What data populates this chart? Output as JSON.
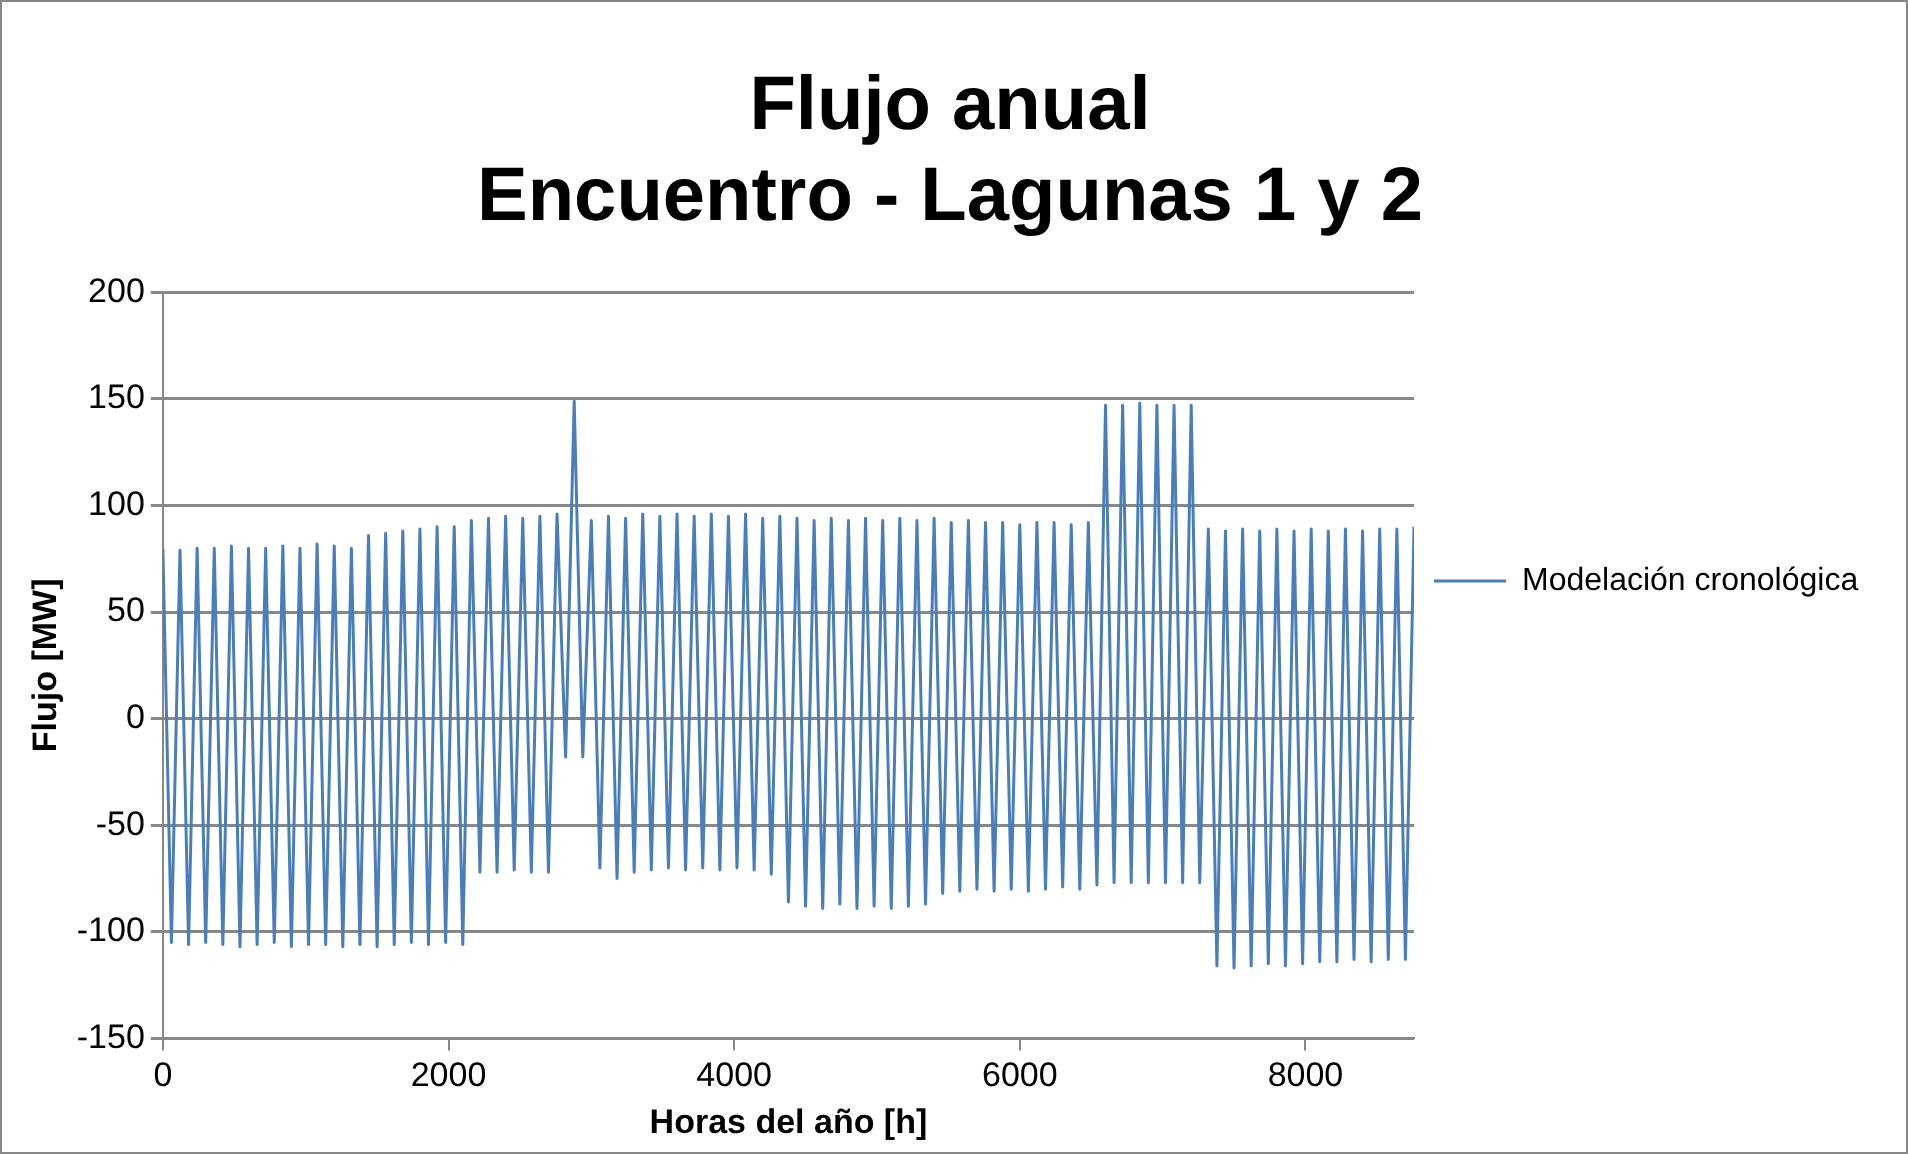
{
  "chart_data": {
    "type": "line",
    "title": "Flujo anual\nEncuentro - Lagunas 1 y 2",
    "xlabel": "Horas del año [h]",
    "ylabel": "Flujo [MW]",
    "xlim": [
      0,
      8760
    ],
    "xticks": [
      0,
      2000,
      4000,
      6000,
      8000
    ],
    "ylim": [
      -150,
      200
    ],
    "yticks": [
      -150,
      -100,
      -50,
      0,
      50,
      100,
      150,
      200
    ],
    "grid": "y",
    "legend": "right",
    "x": [
      0,
      60,
      120,
      180,
      240,
      300,
      360,
      420,
      480,
      540,
      600,
      660,
      720,
      780,
      840,
      900,
      960,
      1020,
      1080,
      1140,
      1200,
      1260,
      1320,
      1380,
      1440,
      1500,
      1560,
      1620,
      1680,
      1740,
      1800,
      1860,
      1920,
      1980,
      2040,
      2100,
      2160,
      2220,
      2280,
      2340,
      2400,
      2460,
      2520,
      2580,
      2640,
      2700,
      2760,
      2820,
      2880,
      2940,
      3000,
      3060,
      3120,
      3180,
      3240,
      3300,
      3360,
      3420,
      3480,
      3540,
      3600,
      3660,
      3720,
      3780,
      3840,
      3900,
      3960,
      4020,
      4080,
      4140,
      4200,
      4260,
      4320,
      4380,
      4440,
      4500,
      4560,
      4620,
      4680,
      4740,
      4800,
      4860,
      4920,
      4980,
      5040,
      5100,
      5160,
      5220,
      5280,
      5340,
      5400,
      5460,
      5520,
      5580,
      5640,
      5700,
      5760,
      5820,
      5880,
      5940,
      6000,
      6060,
      6120,
      6180,
      6240,
      6300,
      6360,
      6420,
      6480,
      6540,
      6600,
      6660,
      6720,
      6780,
      6840,
      6900,
      6960,
      7020,
      7080,
      7140,
      7200,
      7260,
      7320,
      7380,
      7440,
      7500,
      7560,
      7620,
      7680,
      7740,
      7800,
      7860,
      7920,
      7980,
      8040,
      8100,
      8160,
      8220,
      8280,
      8340,
      8400,
      8460,
      8520,
      8580,
      8640,
      8700,
      8760
    ],
    "series": [
      {
        "name": "Modelación cronológica",
        "color": "#4a7ebb",
        "values": [
          80,
          -105,
          79,
          -106,
          80,
          -105,
          80,
          -106,
          81,
          -107,
          80,
          -106,
          80,
          -105,
          81,
          -107,
          80,
          -106,
          82,
          -106,
          81,
          -107,
          80,
          -106,
          86,
          -107,
          87,
          -106,
          88,
          -105,
          89,
          -106,
          90,
          -105,
          90,
          -106,
          93,
          -72,
          94,
          -72,
          95,
          -71,
          94,
          -72,
          95,
          -72,
          96,
          -18,
          149,
          -18,
          93,
          -70,
          95,
          -75,
          94,
          -72,
          96,
          -71,
          95,
          -70,
          96,
          -71,
          95,
          -70,
          96,
          -71,
          95,
          -70,
          96,
          -71,
          94,
          -73,
          95,
          -86,
          94,
          -88,
          93,
          -89,
          94,
          -87,
          93,
          -89,
          94,
          -88,
          93,
          -89,
          94,
          -88,
          93,
          -87,
          94,
          -82,
          92,
          -81,
          93,
          -80,
          92,
          -81,
          92,
          -80,
          91,
          -81,
          92,
          -80,
          92,
          -79,
          91,
          -80,
          92,
          -78,
          147,
          -77,
          147,
          -77,
          148,
          -77,
          147,
          -77,
          147,
          -77,
          147,
          -77,
          89,
          -116,
          88,
          -117,
          89,
          -116,
          88,
          -115,
          89,
          -116,
          88,
          -115,
          89,
          -114,
          88,
          -114,
          89,
          -113,
          88,
          -114,
          89,
          -113,
          89,
          -113,
          90
        ]
      }
    ]
  }
}
